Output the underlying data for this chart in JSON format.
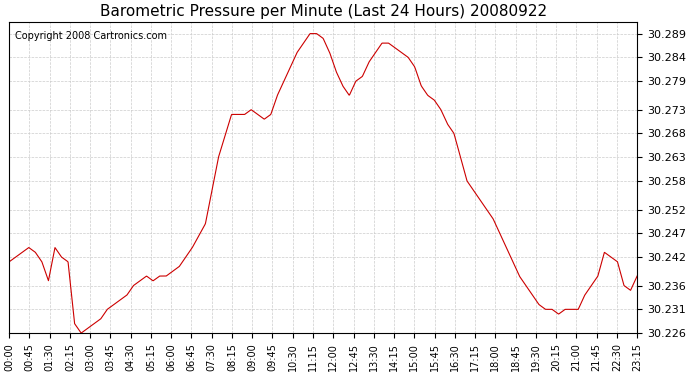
{
  "title": "Barometric Pressure per Minute (Last 24 Hours) 20080922",
  "copyright": "Copyright 2008 Cartronics.com",
  "line_color": "#cc0000",
  "background_color": "#ffffff",
  "grid_color": "#cccccc",
  "ylim": [
    30.226,
    30.2915
  ],
  "yticks": [
    30.226,
    30.231,
    30.236,
    30.242,
    30.247,
    30.252,
    30.258,
    30.263,
    30.268,
    30.273,
    30.279,
    30.284,
    30.289
  ],
  "xtick_labels": [
    "00:00",
    "00:45",
    "01:30",
    "02:15",
    "03:00",
    "03:45",
    "04:30",
    "05:15",
    "06:00",
    "06:45",
    "07:30",
    "08:15",
    "09:00",
    "09:45",
    "10:30",
    "11:15",
    "12:00",
    "12:45",
    "13:30",
    "14:15",
    "15:00",
    "15:45",
    "16:30",
    "17:15",
    "18:00",
    "18:45",
    "19:30",
    "20:15",
    "21:00",
    "21:45",
    "22:30",
    "23:15"
  ],
  "key_times": [
    0,
    15,
    30,
    45,
    60,
    75,
    90,
    105,
    120,
    135,
    150,
    165,
    180,
    195,
    210,
    225,
    240,
    255,
    270,
    285,
    300,
    315,
    330,
    345,
    360,
    390,
    420,
    450,
    480,
    510,
    540,
    555,
    570,
    585,
    600,
    615,
    630,
    645,
    660,
    675,
    690,
    705,
    720,
    735,
    750,
    765,
    780,
    795,
    810,
    825,
    840,
    855,
    870,
    885,
    900,
    915,
    930,
    945,
    960,
    975,
    990,
    1005,
    1020,
    1035,
    1050,
    1065,
    1080,
    1095,
    1110,
    1125,
    1140,
    1155,
    1170,
    1185,
    1200,
    1215,
    1230,
    1245,
    1260,
    1275,
    1290,
    1305,
    1320,
    1335,
    1350,
    1365,
    1380,
    1395,
    1410,
    1425,
    1440
  ],
  "key_pressures": [
    30.241,
    30.242,
    30.243,
    30.244,
    30.243,
    30.241,
    30.237,
    30.244,
    30.242,
    30.241,
    30.228,
    30.226,
    30.227,
    30.228,
    30.229,
    30.231,
    30.232,
    30.233,
    30.234,
    30.236,
    30.237,
    30.238,
    30.237,
    30.238,
    30.238,
    30.24,
    30.244,
    30.249,
    30.263,
    30.272,
    30.272,
    30.273,
    30.272,
    30.271,
    30.272,
    30.276,
    30.279,
    30.282,
    30.285,
    30.287,
    30.289,
    30.289,
    30.288,
    30.285,
    30.281,
    30.278,
    30.276,
    30.279,
    30.28,
    30.283,
    30.285,
    30.287,
    30.287,
    30.286,
    30.285,
    30.284,
    30.282,
    30.278,
    30.276,
    30.275,
    30.273,
    30.27,
    30.268,
    30.263,
    30.258,
    30.256,
    30.254,
    30.252,
    30.25,
    30.247,
    30.244,
    30.241,
    30.238,
    30.236,
    30.234,
    30.232,
    30.231,
    30.231,
    30.23,
    30.231,
    30.231,
    30.231,
    30.234,
    30.236,
    30.238,
    30.243,
    30.242,
    30.241,
    30.236,
    30.235,
    30.238
  ]
}
